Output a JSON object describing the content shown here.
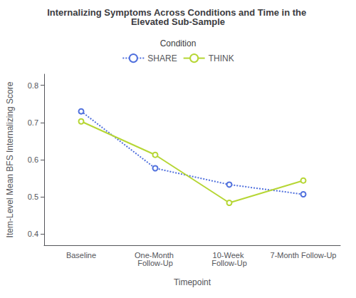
{
  "chart_data": {
    "type": "line",
    "title": "Internalizing Symptoms Across Conditions and Time in the Elevated Sub-Sample",
    "xlabel": "Timepoint",
    "ylabel": "Item-Level Mean BFS Internalizing Score",
    "legend_title": "Condition",
    "legend": "top",
    "grid": false,
    "categories": [
      "Baseline",
      "One-Month Follow-Up",
      "10-Week Follow-Up",
      "7-Month Follow-Up"
    ],
    "series": [
      {
        "name": "SHARE",
        "values": [
          0.73,
          0.577,
          0.533,
          0.507
        ],
        "line_style": "dotted",
        "marker": "open_circle"
      },
      {
        "name": "THINK",
        "values": [
          0.703,
          0.613,
          0.484,
          0.544
        ],
        "line_style": "solid",
        "marker": "open_circle"
      }
    ],
    "ylim": [
      0.37,
      0.83
    ],
    "yticks": [
      0.4,
      0.5,
      0.6,
      0.7,
      0.8
    ]
  }
}
